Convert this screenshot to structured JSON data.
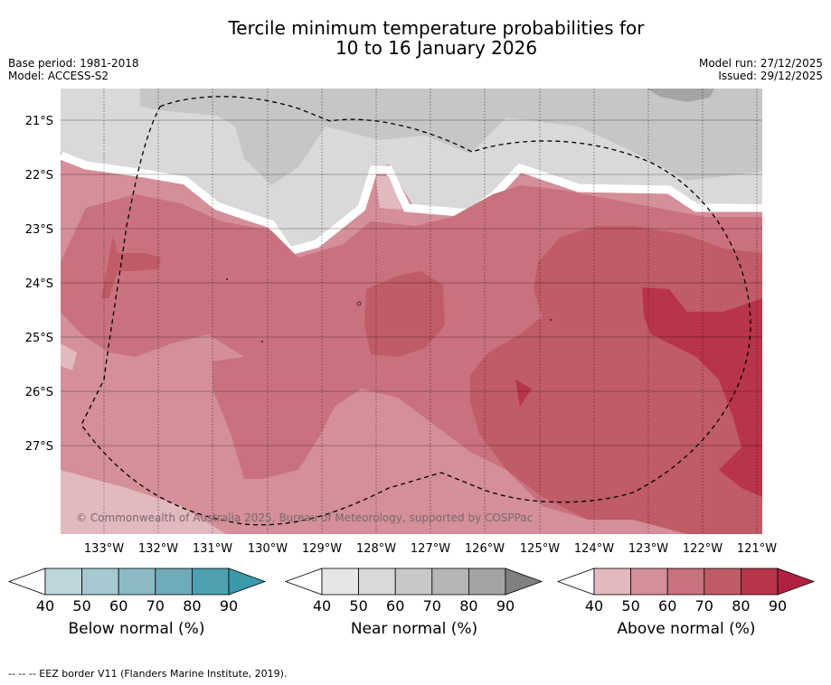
{
  "title": {
    "line1": "Tercile minimum temperature probabilities for",
    "line2": "10 to 16 January 2026"
  },
  "info": {
    "base_period": "Base period: 1981-2018",
    "model": "Model: ACCESS-S2",
    "model_run": "Model run: 27/12/2025",
    "issued": "Issued: 29/12/2025"
  },
  "map": {
    "lat_labels": [
      "21°S",
      "22°S",
      "23°S",
      "24°S",
      "25°S",
      "26°S",
      "27°S"
    ],
    "lon_labels": [
      "133°W",
      "132°W",
      "131°W",
      "130°W",
      "129°W",
      "128°W",
      "127°W",
      "126°W",
      "125°W",
      "124°W",
      "123°W",
      "122°W",
      "121°W"
    ],
    "copyright": "© Commonwealth of Australia 2025, Bureau of Meteorology, supported by COSPPac"
  },
  "colorbars": [
    {
      "label": "Below normal (%)",
      "ticks": [
        "40",
        "50",
        "60",
        "70",
        "80",
        "90"
      ],
      "colors": [
        "#ffffff",
        "#bdd7dd",
        "#a6c9d1",
        "#8bbac5",
        "#6fabb9",
        "#4ea0b0",
        "#3a9aaa"
      ]
    },
    {
      "label": "Near normal (%)",
      "ticks": [
        "40",
        "50",
        "60",
        "70",
        "80",
        "90"
      ],
      "colors": [
        "#ffffff",
        "#e6e6e6",
        "#d9d9d9",
        "#c8c8c8",
        "#b6b6b6",
        "#a3a3a3",
        "#808080"
      ]
    },
    {
      "label": "Above normal (%)",
      "ticks": [
        "40",
        "50",
        "60",
        "70",
        "80",
        "90"
      ],
      "colors": [
        "#ffffff",
        "#e2b9bf",
        "#d48f99",
        "#c9727e",
        "#c05b68",
        "#b8344a",
        "#b02040"
      ]
    }
  ],
  "footer": "-- -- -- EEZ border V11 (Flanders Marine Institute, 2019)."
}
